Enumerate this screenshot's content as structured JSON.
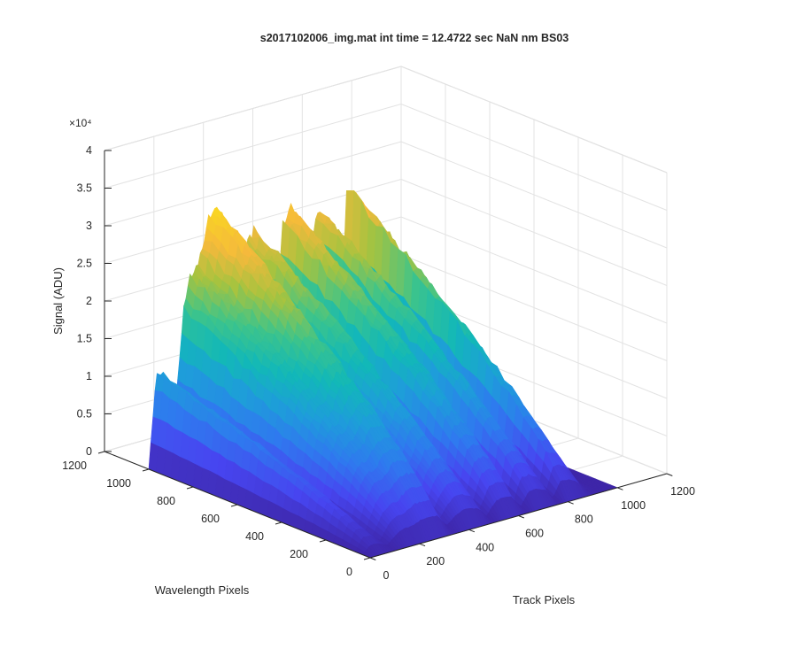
{
  "window": {
    "background": "#ffffff"
  },
  "chart_data": {
    "type": "surface3d",
    "title": "s2017102006_img.mat int time = 12.4722 sec  NaN nm BS03",
    "xlabel": "Track Pixels",
    "ylabel": "Wavelength Pixels",
    "zlabel": "Signal (ADU)",
    "z_exponent_label": "×10⁴",
    "xlim": [
      0,
      1200
    ],
    "ylim": [
      0,
      1200
    ],
    "zlim": [
      0,
      40000
    ],
    "x_ticks": [
      "0",
      "200",
      "400",
      "600",
      "800",
      "1000",
      "1200"
    ],
    "y_ticks": [
      "0",
      "200",
      "400",
      "600",
      "800",
      "1000",
      "1200"
    ],
    "z_ticks": [
      "0",
      "0.5",
      "1",
      "1.5",
      "2",
      "2.5",
      "3",
      "3.5",
      "4"
    ],
    "z_tick_values": [
      0,
      5000,
      10000,
      15000,
      20000,
      25000,
      30000,
      35000,
      40000
    ],
    "grid": true,
    "colormap": "parula",
    "colormap_stops": [
      "#3e26a8",
      "#4745f0",
      "#2f79ef",
      "#1e9dda",
      "#12b8b8",
      "#3ec48a",
      "#a7c33f",
      "#f5b93c",
      "#f9d622"
    ],
    "data_extent": {
      "x": [
        0,
        1000
      ],
      "y": [
        0,
        1000
      ]
    },
    "track_profile": {
      "x": [
        0,
        30,
        60,
        100,
        140,
        170,
        200,
        240,
        270,
        300,
        340,
        370,
        400,
        430,
        470,
        500,
        540,
        570,
        600,
        640,
        670,
        700,
        740,
        770,
        800,
        840,
        870,
        900,
        940,
        970,
        1000
      ],
      "z": [
        0,
        12500,
        12000,
        4500,
        19500,
        24500,
        25000,
        31500,
        32000,
        30500,
        9000,
        20000,
        27000,
        28000,
        22000,
        6000,
        27500,
        29500,
        27500,
        5000,
        27500,
        28000,
        22000,
        4500,
        30000,
        28000,
        19000,
        3500,
        0,
        0,
        0
      ]
    }
  }
}
